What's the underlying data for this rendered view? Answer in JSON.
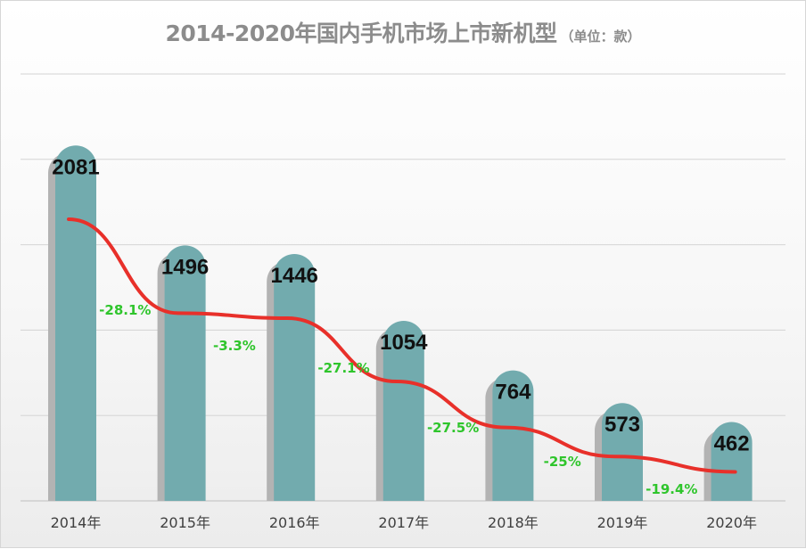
{
  "chart_data": {
    "type": "bar",
    "title": "2014-2020年国内手机市场上市新机型",
    "subtitle": "（单位：款）",
    "categories": [
      "2014年",
      "2015年",
      "2016年",
      "2017年",
      "2018年",
      "2019年",
      "2020年"
    ],
    "values": [
      2081,
      1496,
      1446,
      1054,
      764,
      573,
      462
    ],
    "value_labels": [
      "2081",
      "1496",
      "1446",
      "1054",
      "764",
      "573",
      "462"
    ],
    "growth_labels": [
      "-28.1%",
      "-3.3%",
      "-27.1%",
      "-27.5%",
      "-25%",
      "-19.4%"
    ],
    "ylim": [
      0,
      2500
    ],
    "grid": true,
    "legend": "none",
    "colors": {
      "bar": "#72abae",
      "bar_shadow": "#b3b3b3",
      "trend_line": "#e8302a",
      "growth_label": "#2fc52c",
      "value_label": "#111111",
      "title": "#8c8c8c",
      "axis_label": "#404040",
      "gridline": "#d4d4d4"
    }
  }
}
